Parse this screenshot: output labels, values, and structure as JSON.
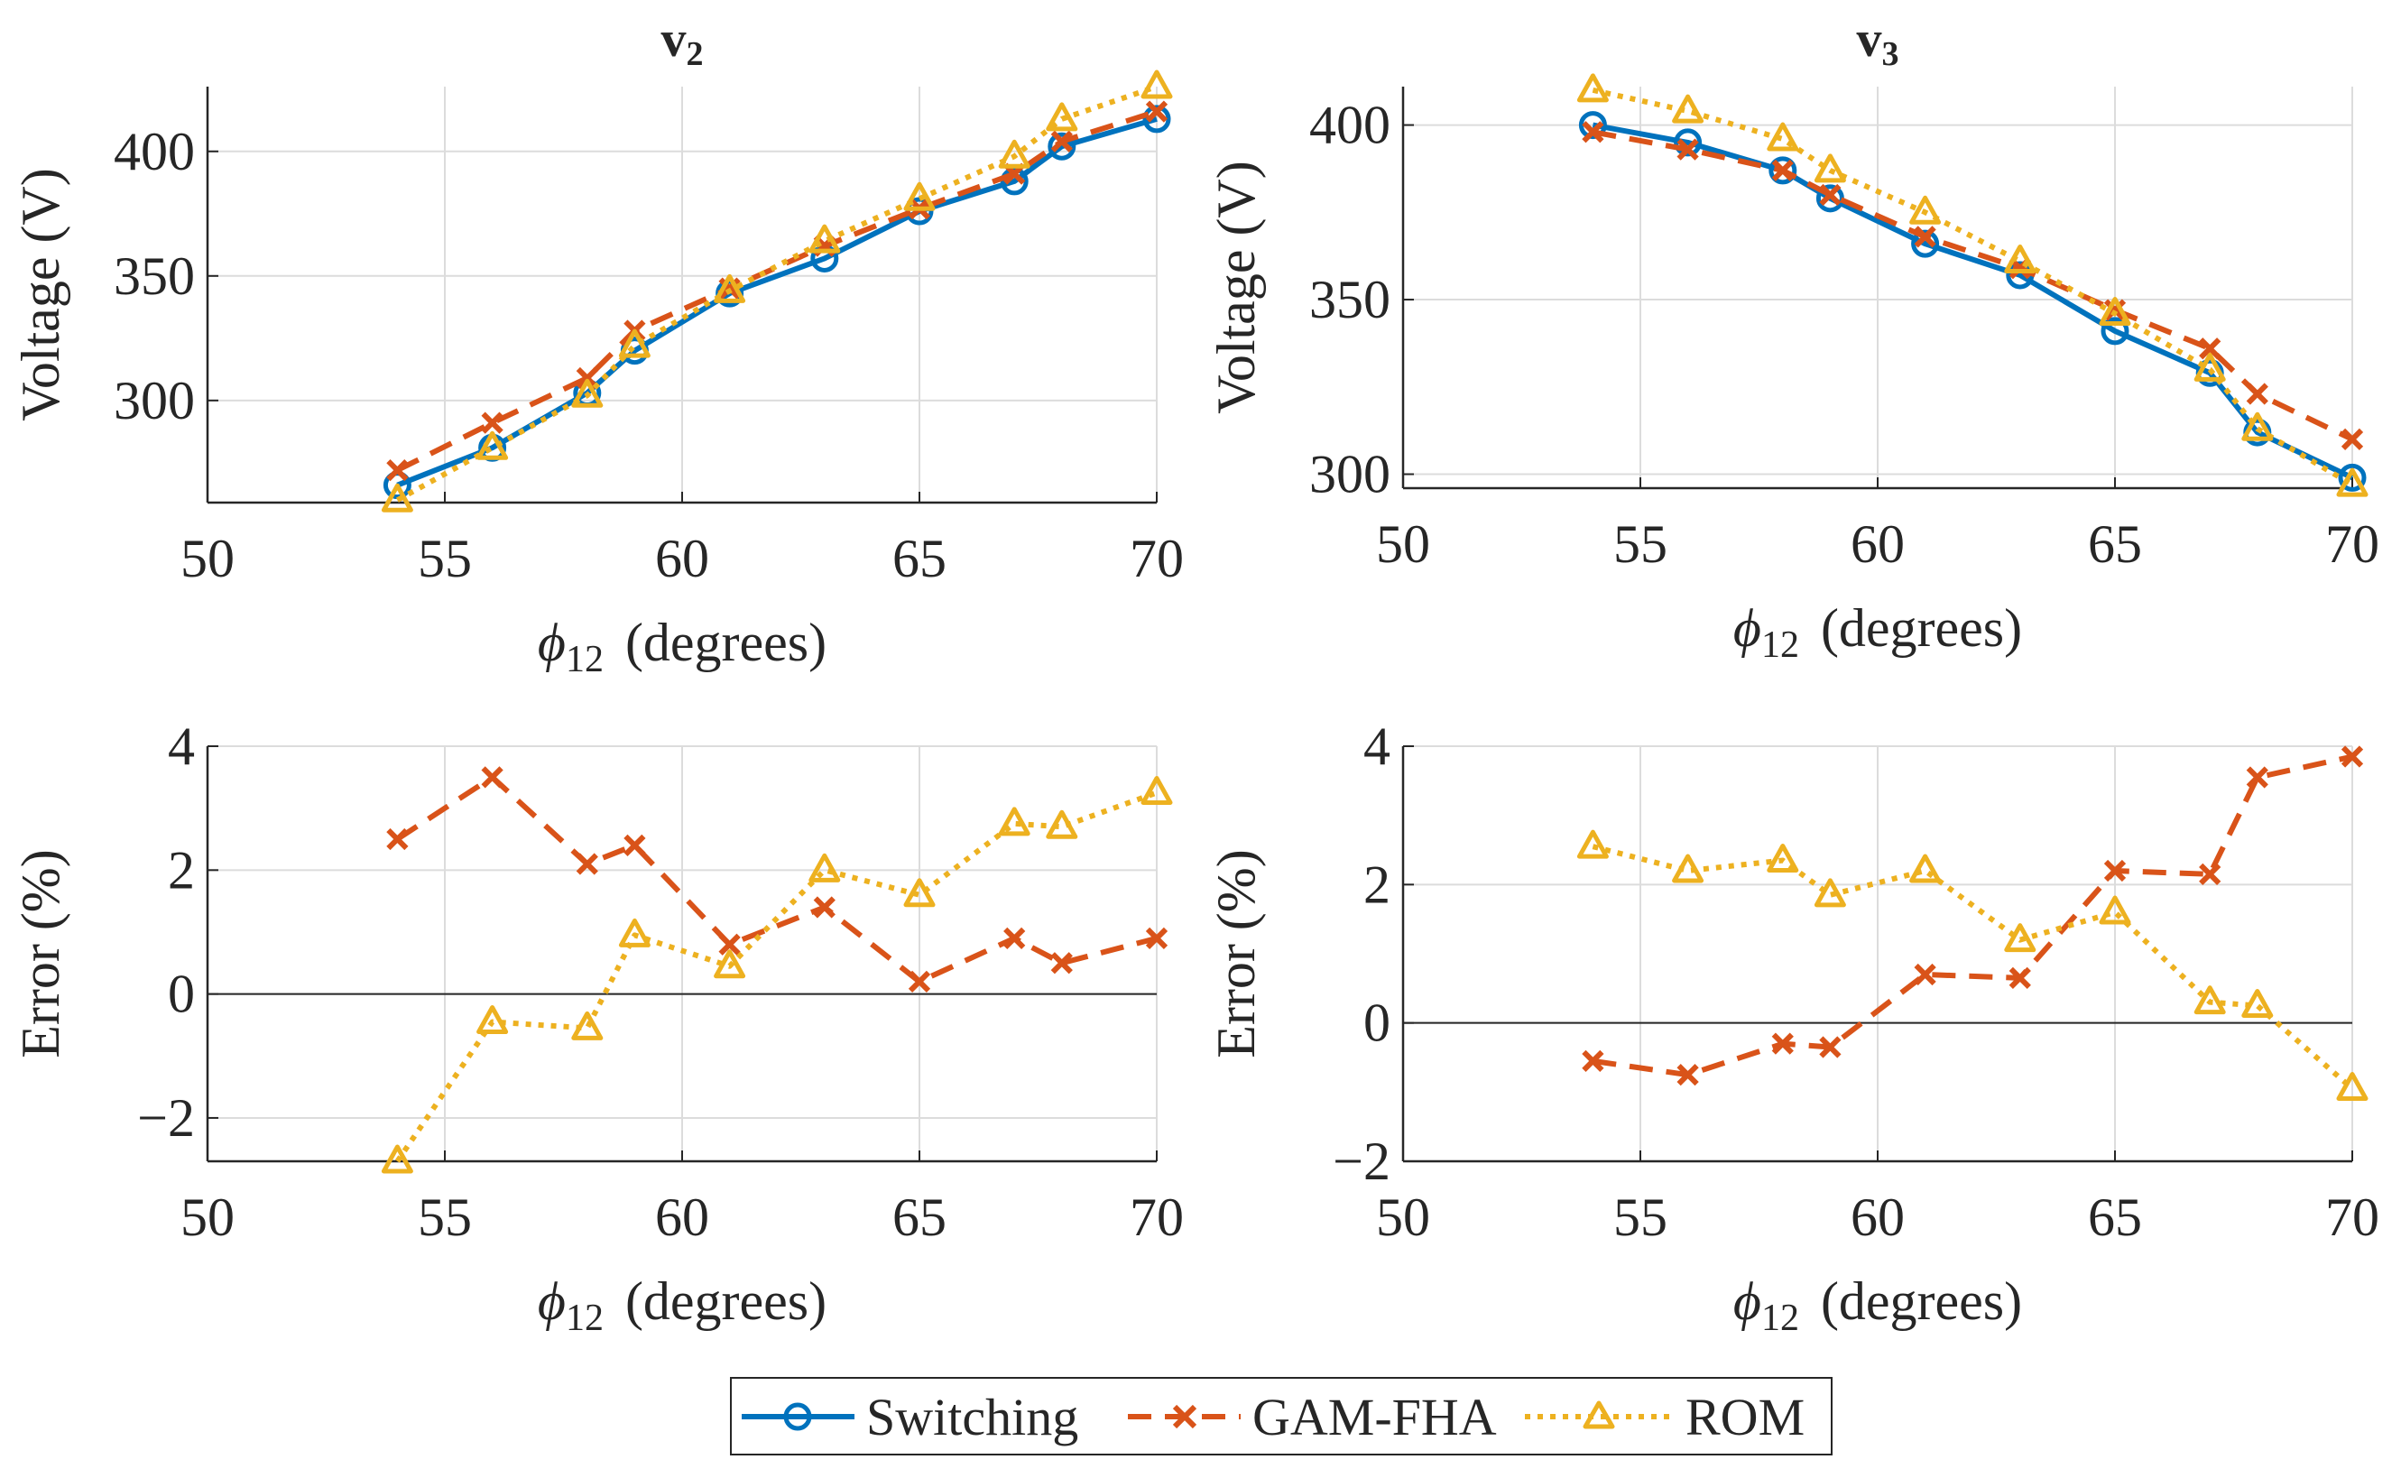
{
  "legend": {
    "entries": [
      {
        "label": "Switching",
        "color": "#0072BD",
        "marker": "circle",
        "dash": "solid"
      },
      {
        "label": "GAM-FHA",
        "color": "#D95319",
        "marker": "x",
        "dash": "dashed"
      },
      {
        "label": "ROM",
        "color": "#EDB120",
        "marker": "triangle",
        "dash": "dotted"
      }
    ]
  },
  "chart_data": [
    {
      "id": "v2-voltage",
      "type": "line",
      "title": "v",
      "title_sub": "2",
      "xlabel_symbol": "ϕ",
      "xlabel_sub": "12",
      "xlabel_text": "(degrees)",
      "ylabel": "Voltage (V)",
      "xlim": [
        50,
        70
      ],
      "ylim": [
        259,
        426
      ],
      "xticks": [
        50,
        55,
        60,
        65,
        70
      ],
      "yticks": [
        300,
        350,
        400
      ],
      "ytick_labels": [
        "300",
        "350",
        "400"
      ],
      "zero_line": false,
      "x": [
        54,
        56,
        58,
        59,
        61,
        63,
        65,
        67,
        68,
        70
      ],
      "series": [
        {
          "name": "Switching",
          "values": [
            266,
            281,
            303,
            320,
            343,
            357,
            376,
            388,
            402,
            413
          ]
        },
        {
          "name": "GAM-FHA",
          "values": [
            272,
            291,
            309,
            328,
            345,
            362,
            377,
            391,
            404,
            416
          ]
        },
        {
          "name": "ROM",
          "values": [
            260,
            281,
            302,
            322,
            344,
            364,
            381,
            398,
            413,
            426
          ]
        }
      ]
    },
    {
      "id": "v3-voltage",
      "type": "line",
      "title": "v",
      "title_sub": "3",
      "xlabel_symbol": "ϕ",
      "xlabel_sub": "12",
      "xlabel_text": "(degrees)",
      "ylabel": "Voltage (V)",
      "xlim": [
        50,
        70
      ],
      "ylim": [
        296,
        411
      ],
      "xticks": [
        50,
        55,
        60,
        65,
        70
      ],
      "yticks": [
        300,
        350,
        400
      ],
      "ytick_labels": [
        "300",
        "350",
        "400"
      ],
      "zero_line": false,
      "x": [
        54,
        56,
        58,
        59,
        61,
        63,
        65,
        67,
        68,
        70
      ],
      "series": [
        {
          "name": "Switching",
          "values": [
            400,
            395,
            387,
            379,
            366,
            357,
            341,
            329,
            312,
            299
          ]
        },
        {
          "name": "GAM-FHA",
          "values": [
            398,
            393,
            387,
            380,
            368,
            359,
            347,
            336,
            323,
            310
          ]
        },
        {
          "name": "ROM",
          "values": [
            410,
            404,
            396,
            387,
            375,
            361,
            346,
            330,
            313,
            297
          ]
        }
      ]
    },
    {
      "id": "v2-error",
      "type": "line",
      "title": "",
      "title_sub": "",
      "xlabel_symbol": "ϕ",
      "xlabel_sub": "12",
      "xlabel_text": "(degrees)",
      "ylabel": "Error (%)",
      "xlim": [
        50,
        70
      ],
      "ylim": [
        -2.7,
        4
      ],
      "xticks": [
        50,
        55,
        60,
        65,
        70
      ],
      "yticks": [
        -2,
        0,
        2,
        4
      ],
      "ytick_labels": [
        "−2",
        "0",
        "2",
        "4"
      ],
      "zero_line": true,
      "x": [
        54,
        56,
        58,
        59,
        61,
        63,
        65,
        67,
        68,
        70
      ],
      "series": [
        {
          "name": "GAM-FHA",
          "values": [
            2.5,
            3.5,
            2.1,
            2.4,
            0.8,
            1.4,
            0.2,
            0.9,
            0.5,
            0.9
          ]
        },
        {
          "name": "ROM",
          "values": [
            -2.7,
            -0.45,
            -0.55,
            0.95,
            0.45,
            2.0,
            1.6,
            2.75,
            2.7,
            3.25
          ]
        }
      ]
    },
    {
      "id": "v3-error",
      "type": "line",
      "title": "",
      "title_sub": "",
      "xlabel_symbol": "ϕ",
      "xlabel_sub": "12",
      "xlabel_text": "(degrees)",
      "ylabel": "Error (%)",
      "xlim": [
        50,
        70
      ],
      "ylim": [
        -2,
        4
      ],
      "xticks": [
        50,
        55,
        60,
        65,
        70
      ],
      "yticks": [
        -2,
        0,
        2,
        4
      ],
      "ytick_labels": [
        "−2",
        "0",
        "2",
        "4"
      ],
      "zero_line": true,
      "x": [
        54,
        56,
        58,
        59,
        61,
        63,
        65,
        67,
        68,
        70
      ],
      "series": [
        {
          "name": "GAM-FHA",
          "values": [
            -0.55,
            -0.75,
            -0.3,
            -0.35,
            0.7,
            0.65,
            2.2,
            2.15,
            3.55,
            3.85
          ]
        },
        {
          "name": "ROM",
          "values": [
            2.55,
            2.2,
            2.35,
            1.85,
            2.2,
            1.2,
            1.6,
            0.3,
            0.25,
            -0.95
          ]
        }
      ]
    }
  ]
}
